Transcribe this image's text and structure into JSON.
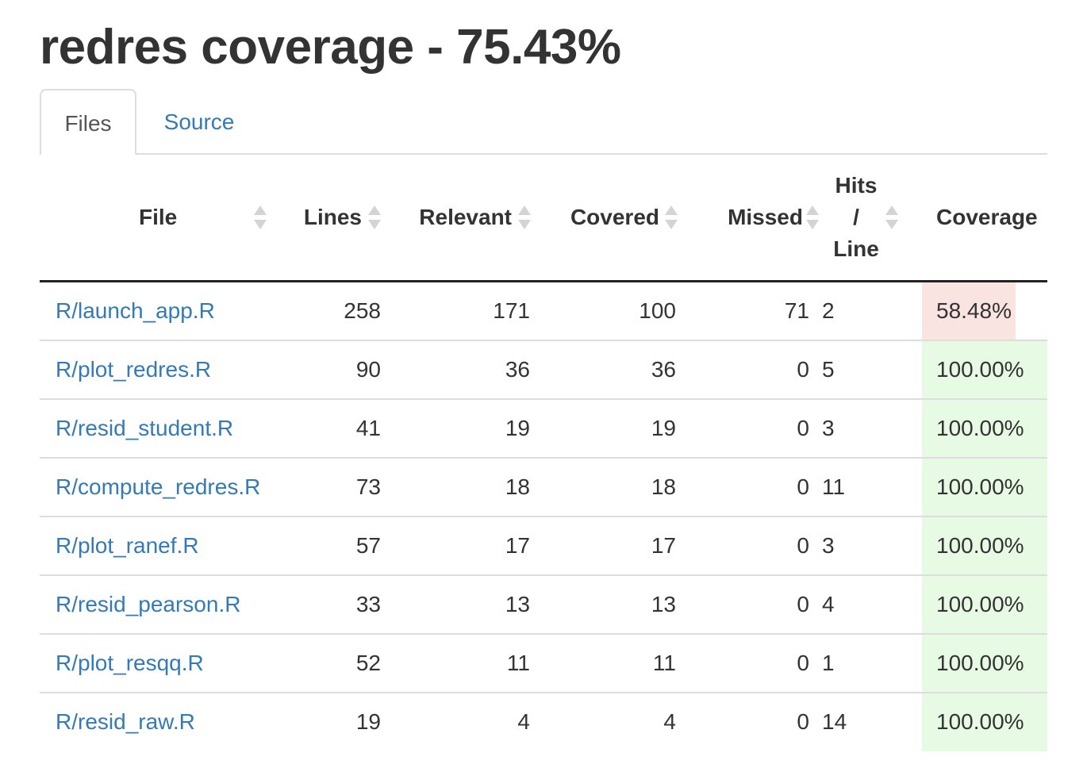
{
  "header": {
    "title": "redres coverage - 75.43%"
  },
  "tabs": [
    {
      "label": "Files",
      "active": true
    },
    {
      "label": "Source",
      "active": false
    }
  ],
  "table": {
    "columns": {
      "file": "File",
      "lines": "Lines",
      "relevant": "Relevant",
      "covered": "Covered",
      "missed": "Missed",
      "hits_line_1": "Hits",
      "hits_line_2": "/",
      "hits_line_3": "Line",
      "coverage": "Coverage"
    },
    "rows": [
      {
        "file": "R/launch_app.R",
        "lines": "258",
        "relevant": "171",
        "covered": "100",
        "missed": "71",
        "hits": "2",
        "coverage": "58.48%"
      },
      {
        "file": "R/plot_redres.R",
        "lines": "90",
        "relevant": "36",
        "covered": "36",
        "missed": "0",
        "hits": "5",
        "coverage": "100.00%"
      },
      {
        "file": "R/resid_student.R",
        "lines": "41",
        "relevant": "19",
        "covered": "19",
        "missed": "0",
        "hits": "3",
        "coverage": "100.00%"
      },
      {
        "file": "R/compute_redres.R",
        "lines": "73",
        "relevant": "18",
        "covered": "18",
        "missed": "0",
        "hits": "11",
        "coverage": "100.00%"
      },
      {
        "file": "R/plot_ranef.R",
        "lines": "57",
        "relevant": "17",
        "covered": "17",
        "missed": "0",
        "hits": "3",
        "coverage": "100.00%"
      },
      {
        "file": "R/resid_pearson.R",
        "lines": "33",
        "relevant": "13",
        "covered": "13",
        "missed": "0",
        "hits": "4",
        "coverage": "100.00%"
      },
      {
        "file": "R/plot_resqq.R",
        "lines": "52",
        "relevant": "11",
        "covered": "11",
        "missed": "0",
        "hits": "1",
        "coverage": "100.00%"
      },
      {
        "file": "R/resid_raw.R",
        "lines": "19",
        "relevant": "4",
        "covered": "4",
        "missed": "0",
        "hits": "14",
        "coverage": "100.00%"
      }
    ]
  },
  "colors": {
    "link": "#337ab7",
    "coverage_low_bg": "#f9e4e1",
    "coverage_full_bg": "#e7fbe4"
  },
  "icons": {
    "sort": "sort-both-icon"
  }
}
